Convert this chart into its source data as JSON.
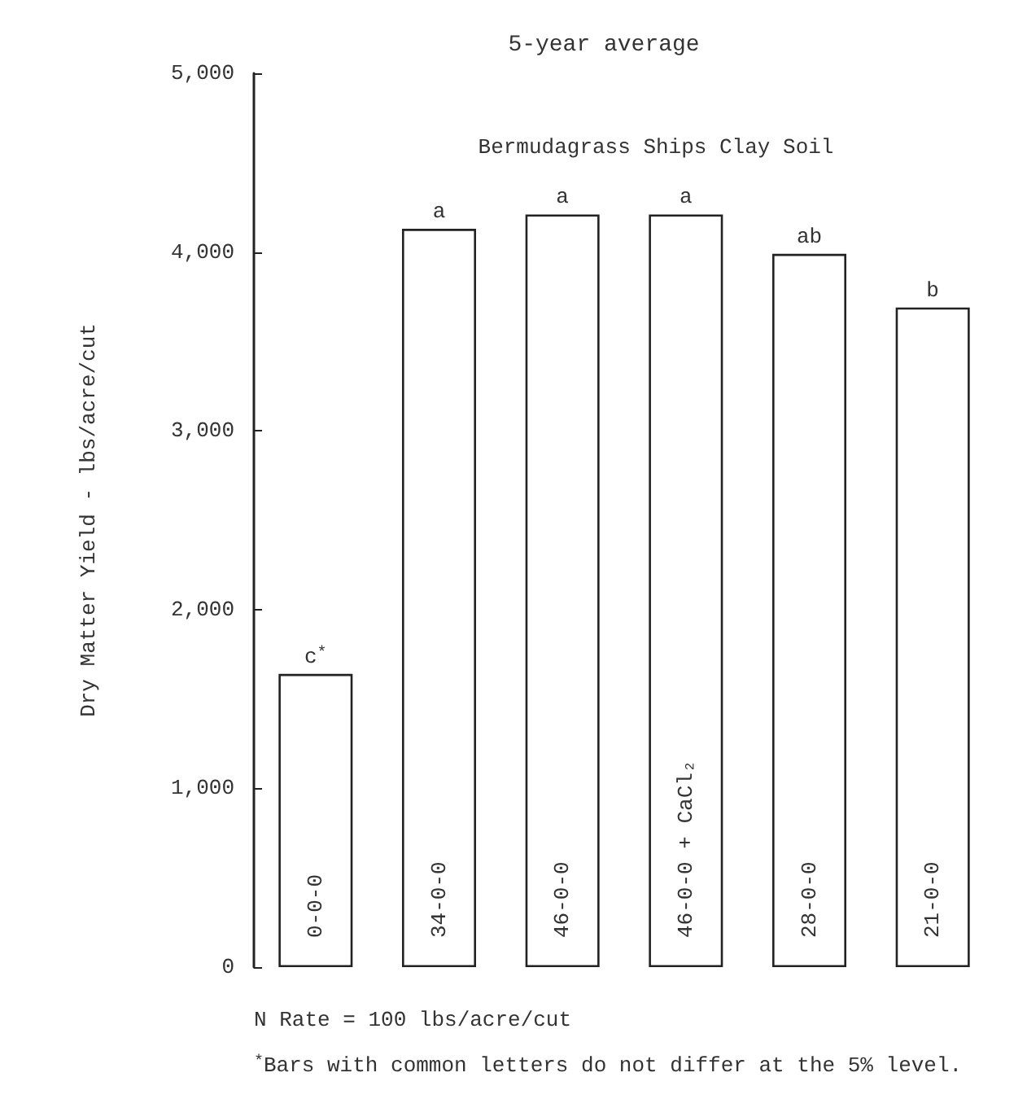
{
  "chart_data": {
    "type": "bar",
    "title": "5-year average",
    "subtitle": "Bermudagrass Ships Clay Soil",
    "ylabel": "Dry Matter Yield - lbs/acre/cut",
    "categories": [
      "0-0-0",
      "34-0-0",
      "46-0-0",
      "46-0-0 + CaCl₂",
      "28-0-0",
      "21-0-0"
    ],
    "values": [
      1640,
      4130,
      4210,
      4210,
      3990,
      3690
    ],
    "color": "#ffffff",
    "ylim": [
      0,
      5000
    ],
    "yticks": [
      0,
      {
        "value": 1000,
        "label": "1,000"
      },
      {
        "value": 2000,
        "label": "2,000"
      },
      {
        "value": 3000,
        "label": "3,000"
      },
      {
        "value": 4000,
        "label": "4,000"
      },
      {
        "value": 5000,
        "label": "5,000"
      }
    ],
    "grid": false,
    "annotations": [
      {
        "text": "c$^{*}$",
        "x": "0-0-0",
        "y": 1640
      },
      {
        "text": "a",
        "x": "34-0-0",
        "y": 4130
      },
      {
        "text": "a",
        "x": "46-0-0",
        "y": 4210
      },
      {
        "text": "a",
        "x": "46-0-0 + CaCl₂",
        "y": 4210
      },
      {
        "text": "ab",
        "x": "28-0-0",
        "y": 3990
      },
      {
        "text": "b",
        "x": "21-0-0",
        "y": 3690
      },
      "N Rate = 100 lbs/acre/cut",
      "$^{*}$Bars with common letters do not differ at the 5% level."
    ]
  }
}
